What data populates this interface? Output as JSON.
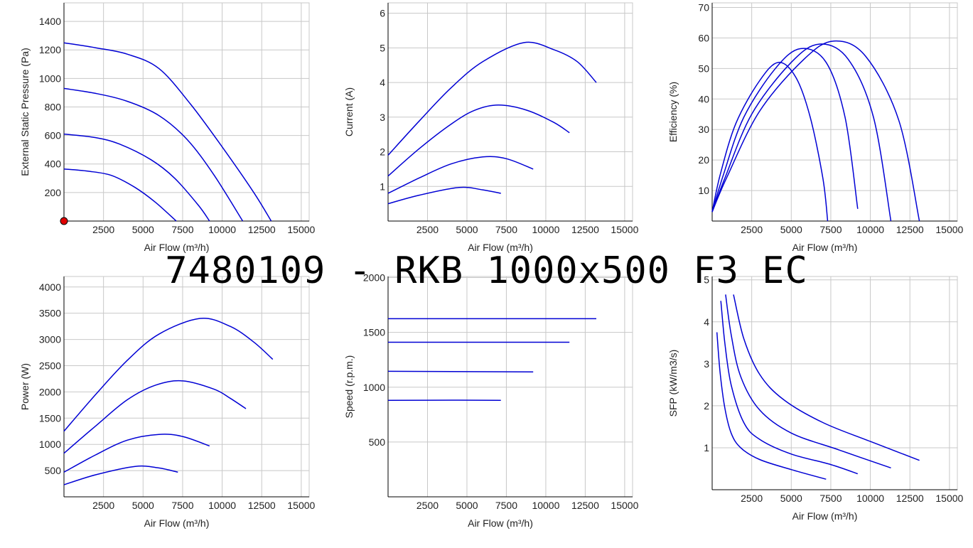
{
  "title": "7480109 - RKB 1000x500 F3 EC",
  "colors": {
    "curve": "#0000d4",
    "grid": "#c8c8c8",
    "marker": "#e00000"
  },
  "chart_data": [
    {
      "id": "pressure",
      "type": "line",
      "xlabel": "Air Flow (m³/h)",
      "ylabel": "External Static Pressure (Pa)",
      "xticks": [
        2500,
        5000,
        7500,
        10000,
        12500,
        15000
      ],
      "yticks": [
        200,
        400,
        600,
        800,
        1000,
        1200,
        1400
      ],
      "xlim": [
        0,
        15500
      ],
      "ylim": [
        0,
        1530
      ],
      "marker": {
        "x": 0,
        "y": 0
      },
      "series": [
        {
          "points": [
            [
              0,
              1250
            ],
            [
              2000,
              1215
            ],
            [
              4000,
              1170
            ],
            [
              6000,
              1070
            ],
            [
              8000,
              820
            ],
            [
              10000,
              520
            ],
            [
              12000,
              200
            ],
            [
              13100,
              0
            ]
          ]
        },
        {
          "points": [
            [
              0,
              930
            ],
            [
              2000,
              895
            ],
            [
              4000,
              840
            ],
            [
              6000,
              740
            ],
            [
              7800,
              570
            ],
            [
              9500,
              320
            ],
            [
              11300,
              0
            ]
          ]
        },
        {
          "points": [
            [
              0,
              610
            ],
            [
              2000,
              585
            ],
            [
              3500,
              540
            ],
            [
              5500,
              430
            ],
            [
              7000,
              300
            ],
            [
              8500,
              110
            ],
            [
              9200,
              0
            ]
          ]
        },
        {
          "points": [
            [
              0,
              365
            ],
            [
              1500,
              350
            ],
            [
              3000,
              320
            ],
            [
              4500,
              235
            ],
            [
              5800,
              130
            ],
            [
              7100,
              0
            ]
          ]
        }
      ]
    },
    {
      "id": "current",
      "type": "line",
      "xlabel": "Air Flow (m³/h)",
      "ylabel": "Current (A)",
      "xticks": [
        2500,
        5000,
        7500,
        10000,
        12500,
        15000
      ],
      "yticks": [
        1,
        2,
        3,
        4,
        5,
        6
      ],
      "xlim": [
        0,
        15500
      ],
      "ylim": [
        0,
        6.3
      ],
      "series": [
        {
          "points": [
            [
              0,
              1.9
            ],
            [
              2000,
              2.9
            ],
            [
              4000,
              3.85
            ],
            [
              6000,
              4.6
            ],
            [
              8600,
              5.15
            ],
            [
              10500,
              4.95
            ],
            [
              12000,
              4.6
            ],
            [
              13200,
              4.0
            ]
          ]
        },
        {
          "points": [
            [
              0,
              1.3
            ],
            [
              2000,
              2.1
            ],
            [
              4000,
              2.8
            ],
            [
              5500,
              3.2
            ],
            [
              7000,
              3.35
            ],
            [
              8800,
              3.2
            ],
            [
              10500,
              2.85
            ],
            [
              11500,
              2.55
            ]
          ]
        },
        {
          "points": [
            [
              0,
              0.8
            ],
            [
              2000,
              1.25
            ],
            [
              4000,
              1.65
            ],
            [
              6000,
              1.85
            ],
            [
              7500,
              1.8
            ],
            [
              9200,
              1.5
            ]
          ]
        },
        {
          "points": [
            [
              0,
              0.5
            ],
            [
              2000,
              0.75
            ],
            [
              4500,
              0.97
            ],
            [
              6000,
              0.9
            ],
            [
              7150,
              0.8
            ]
          ]
        }
      ]
    },
    {
      "id": "efficiency",
      "type": "line",
      "xlabel": "Air Flow (m³/h)",
      "ylabel": "Efficiency (%)",
      "xticks": [
        2500,
        5000,
        7500,
        10000,
        12500,
        15000
      ],
      "yticks": [
        10,
        20,
        30,
        40,
        50,
        60,
        70
      ],
      "xlim": [
        0,
        15500
      ],
      "ylim": [
        0,
        71.5
      ],
      "series": [
        {
          "points": [
            [
              0,
              3
            ],
            [
              500,
              15
            ],
            [
              1500,
              32
            ],
            [
              3000,
              46
            ],
            [
              4200,
              52
            ],
            [
              5300,
              47
            ],
            [
              6200,
              34
            ],
            [
              7000,
              14
            ],
            [
              7300,
              0
            ]
          ]
        },
        {
          "points": [
            [
              0,
              3
            ],
            [
              700,
              15
            ],
            [
              2000,
              34
            ],
            [
              4000,
              50
            ],
            [
              5600,
              56.5
            ],
            [
              7200,
              52
            ],
            [
              8400,
              34
            ],
            [
              9200,
              4
            ]
          ]
        },
        {
          "points": [
            [
              0,
              3
            ],
            [
              800,
              14
            ],
            [
              2500,
              35
            ],
            [
              5000,
              52
            ],
            [
              6800,
              58
            ],
            [
              8600,
              53
            ],
            [
              10200,
              34
            ],
            [
              11300,
              0
            ]
          ]
        },
        {
          "points": [
            [
              0,
              3
            ],
            [
              900,
              14
            ],
            [
              3000,
              36
            ],
            [
              5800,
              53
            ],
            [
              7700,
              59
            ],
            [
              9700,
              54
            ],
            [
              11800,
              33
            ],
            [
              13100,
              0
            ]
          ]
        }
      ]
    },
    {
      "id": "power",
      "type": "line",
      "xlabel": "Air Flow (m³/h)",
      "ylabel": "Power (W)",
      "xticks": [
        2500,
        5000,
        7500,
        10000,
        12500,
        15000
      ],
      "yticks": [
        500,
        1000,
        1500,
        2000,
        2500,
        3000,
        3500,
        4000
      ],
      "xlim": [
        0,
        15500
      ],
      "ylim": [
        0,
        4200
      ],
      "series": [
        {
          "points": [
            [
              0,
              1250
            ],
            [
              2000,
              1950
            ],
            [
              4000,
              2600
            ],
            [
              6000,
              3100
            ],
            [
              8600,
              3400
            ],
            [
              10500,
              3250
            ],
            [
              12000,
              2950
            ],
            [
              13200,
              2620
            ]
          ]
        },
        {
          "points": [
            [
              0,
              830
            ],
            [
              2000,
              1350
            ],
            [
              4000,
              1850
            ],
            [
              5800,
              2130
            ],
            [
              7500,
              2210
            ],
            [
              9500,
              2050
            ],
            [
              10500,
              1880
            ],
            [
              11500,
              1680
            ]
          ]
        },
        {
          "points": [
            [
              0,
              470
            ],
            [
              2000,
              800
            ],
            [
              4000,
              1080
            ],
            [
              6000,
              1190
            ],
            [
              7500,
              1150
            ],
            [
              9200,
              970
            ]
          ]
        },
        {
          "points": [
            [
              0,
              230
            ],
            [
              2000,
              420
            ],
            [
              4500,
              580
            ],
            [
              6000,
              550
            ],
            [
              7200,
              470
            ]
          ]
        }
      ]
    },
    {
      "id": "speed",
      "type": "line",
      "xlabel": "Air Flow (m³/h)",
      "ylabel": "Speed (r.p.m.)",
      "xticks": [
        2500,
        5000,
        7500,
        10000,
        12500,
        15000
      ],
      "yticks": [
        500,
        1000,
        1500,
        2000
      ],
      "xlim": [
        0,
        15500
      ],
      "ylim": [
        0,
        2010
      ],
      "series": [
        {
          "points": [
            [
              0,
              1625
            ],
            [
              13200,
              1625
            ]
          ]
        },
        {
          "points": [
            [
              0,
              1410
            ],
            [
              11500,
              1410
            ]
          ]
        },
        {
          "points": [
            [
              0,
              1145
            ],
            [
              9200,
              1140
            ]
          ]
        },
        {
          "points": [
            [
              0,
              880
            ],
            [
              4500,
              882
            ],
            [
              7150,
              880
            ]
          ]
        }
      ]
    },
    {
      "id": "sfp",
      "type": "line",
      "xlabel": "Air Flow (m³/h)",
      "ylabel": "SFP (kW/m3/s)",
      "xticks": [
        2500,
        5000,
        7500,
        10000,
        12500,
        15000
      ],
      "yticks": [
        1,
        2,
        3,
        4,
        5
      ],
      "xlim": [
        0,
        15500
      ],
      "ylim": [
        0,
        5.08
      ],
      "series": [
        {
          "points": [
            [
              300,
              3.75
            ],
            [
              500,
              2.8
            ],
            [
              800,
              1.95
            ],
            [
              1200,
              1.35
            ],
            [
              1800,
              1.0
            ],
            [
              3000,
              0.72
            ],
            [
              5000,
              0.48
            ],
            [
              7200,
              0.25
            ]
          ]
        },
        {
          "points": [
            [
              550,
              4.5
            ],
            [
              800,
              3.5
            ],
            [
              1200,
              2.5
            ],
            [
              2000,
              1.6
            ],
            [
              3000,
              1.2
            ],
            [
              5000,
              0.85
            ],
            [
              7500,
              0.6
            ],
            [
              9200,
              0.38
            ]
          ]
        },
        {
          "points": [
            [
              850,
              4.65
            ],
            [
              1200,
              3.7
            ],
            [
              1800,
              2.7
            ],
            [
              3000,
              1.9
            ],
            [
              5000,
              1.35
            ],
            [
              8000,
              0.95
            ],
            [
              11300,
              0.52
            ]
          ]
        },
        {
          "points": [
            [
              1350,
              4.65
            ],
            [
              2000,
              3.6
            ],
            [
              3000,
              2.75
            ],
            [
              4500,
              2.15
            ],
            [
              7000,
              1.6
            ],
            [
              10000,
              1.15
            ],
            [
              13100,
              0.7
            ]
          ]
        }
      ]
    }
  ]
}
